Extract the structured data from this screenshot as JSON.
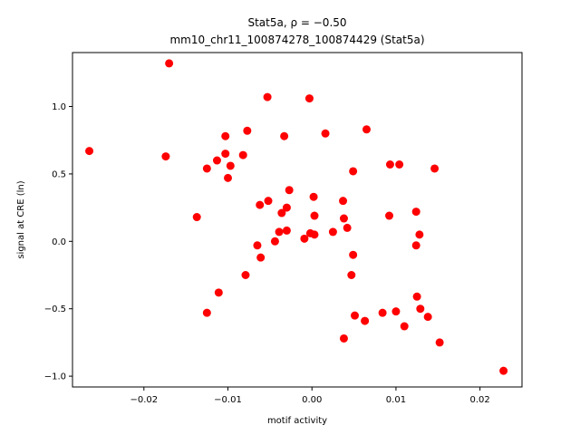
{
  "chart_data": {
    "type": "scatter",
    "title": "Stat5a, ρ = −0.50",
    "subtitle": "mm10_chr11_100874278_100874429 (Stat5a)",
    "xlabel": "motif activity",
    "ylabel": "signal at CRE (ln)",
    "xlim": [
      -0.0285,
      0.025
    ],
    "ylim": [
      -1.08,
      1.4
    ],
    "x_ticks": [
      -0.02,
      -0.01,
      0.0,
      0.01,
      0.02
    ],
    "x_tick_labels": [
      "−0.02",
      "−0.01",
      "0.00",
      "0.01",
      "0.02"
    ],
    "y_ticks": [
      -1.0,
      -0.5,
      0.0,
      0.5,
      1.0
    ],
    "y_tick_labels": [
      "−1.0",
      "−0.5",
      "0.0",
      "0.5",
      "1.0"
    ],
    "grid": false,
    "marker_color": "#ff0000",
    "points": [
      {
        "x": -0.0265,
        "y": 0.67
      },
      {
        "x": -0.017,
        "y": 1.32
      },
      {
        "x": -0.0174,
        "y": 0.63
      },
      {
        "x": -0.0137,
        "y": 0.18
      },
      {
        "x": -0.0125,
        "y": 0.54
      },
      {
        "x": -0.0125,
        "y": -0.53
      },
      {
        "x": -0.0113,
        "y": 0.6
      },
      {
        "x": -0.0111,
        "y": -0.38
      },
      {
        "x": -0.0103,
        "y": 0.78
      },
      {
        "x": -0.0103,
        "y": 0.65
      },
      {
        "x": -0.01,
        "y": 0.47
      },
      {
        "x": -0.0097,
        "y": 0.56
      },
      {
        "x": -0.0082,
        "y": 0.64
      },
      {
        "x": -0.0077,
        "y": 0.82
      },
      {
        "x": -0.0079,
        "y": -0.25
      },
      {
        "x": -0.0065,
        "y": -0.03
      },
      {
        "x": -0.0062,
        "y": 0.27
      },
      {
        "x": -0.0061,
        "y": -0.12
      },
      {
        "x": -0.0053,
        "y": 1.07
      },
      {
        "x": -0.0052,
        "y": 0.3
      },
      {
        "x": -0.0044,
        "y": 0.0
      },
      {
        "x": -0.0039,
        "y": 0.07
      },
      {
        "x": -0.0036,
        "y": 0.21
      },
      {
        "x": -0.0033,
        "y": 0.78
      },
      {
        "x": -0.003,
        "y": 0.08
      },
      {
        "x": -0.003,
        "y": 0.25
      },
      {
        "x": -0.0027,
        "y": 0.38
      },
      {
        "x": -0.0009,
        "y": 0.02
      },
      {
        "x": -0.0003,
        "y": 1.06
      },
      {
        "x": -0.0002,
        "y": 0.06
      },
      {
        "x": 0.0002,
        "y": 0.33
      },
      {
        "x": 0.0003,
        "y": 0.19
      },
      {
        "x": 0.0003,
        "y": 0.05
      },
      {
        "x": 0.0016,
        "y": 0.8
      },
      {
        "x": 0.0025,
        "y": 0.07
      },
      {
        "x": 0.0037,
        "y": 0.3
      },
      {
        "x": 0.0038,
        "y": 0.17
      },
      {
        "x": 0.0038,
        "y": -0.72
      },
      {
        "x": 0.0042,
        "y": 0.1
      },
      {
        "x": 0.0047,
        "y": -0.25
      },
      {
        "x": 0.0049,
        "y": 0.52
      },
      {
        "x": 0.0049,
        "y": -0.1
      },
      {
        "x": 0.0051,
        "y": -0.55
      },
      {
        "x": 0.0063,
        "y": -0.59
      },
      {
        "x": 0.0065,
        "y": 0.83
      },
      {
        "x": 0.0084,
        "y": -0.53
      },
      {
        "x": 0.0092,
        "y": 0.19
      },
      {
        "x": 0.0093,
        "y": 0.57
      },
      {
        "x": 0.01,
        "y": -0.52
      },
      {
        "x": 0.0104,
        "y": 0.57
      },
      {
        "x": 0.011,
        "y": -0.63
      },
      {
        "x": 0.0124,
        "y": 0.22
      },
      {
        "x": 0.0124,
        "y": -0.03
      },
      {
        "x": 0.0125,
        "y": -0.41
      },
      {
        "x": 0.0128,
        "y": 0.05
      },
      {
        "x": 0.0129,
        "y": -0.5
      },
      {
        "x": 0.0138,
        "y": -0.56
      },
      {
        "x": 0.0146,
        "y": 0.54
      },
      {
        "x": 0.0152,
        "y": -0.75
      },
      {
        "x": 0.0228,
        "y": -0.96
      }
    ]
  }
}
